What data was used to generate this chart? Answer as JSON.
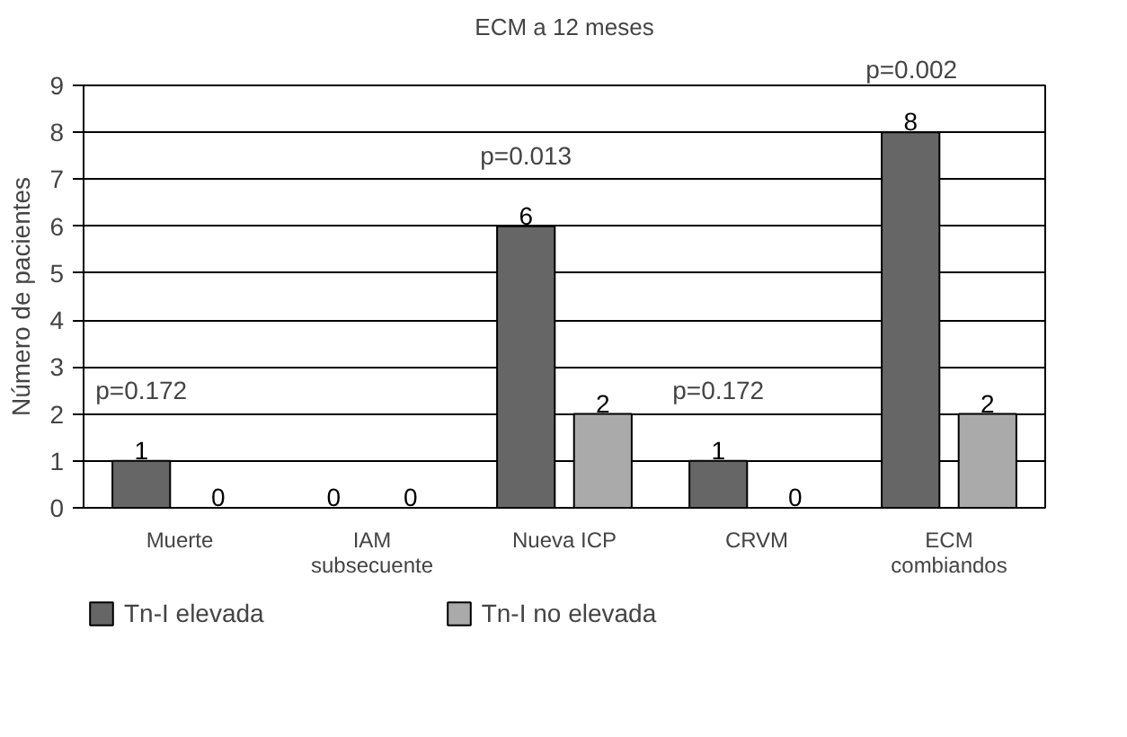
{
  "chart_data": {
    "type": "bar",
    "title": "ECM a 12 meses",
    "ylabel": "Número de pacientes",
    "categories": [
      "Muerte",
      "IAM\nsubsecuente",
      "Nueva ICP",
      "CRVM",
      "ECM\ncombiandos"
    ],
    "series": [
      {
        "name": "Tn-I elevada",
        "color": "#666666",
        "values": [
          1,
          0,
          6,
          1,
          8
        ]
      },
      {
        "name": "Tn-I no elevada",
        "color": "#aaaaaa",
        "values": [
          0,
          0,
          2,
          0,
          2
        ]
      }
    ],
    "ylim": [
      0,
      9
    ],
    "yticks": [
      0,
      1,
      2,
      3,
      4,
      5,
      6,
      7,
      8,
      9
    ],
    "grid": "y",
    "legend": "bottom",
    "data_labels": true,
    "annotations": [
      "p=0.172",
      "p=0.013",
      "p=0.172",
      "p=0.002"
    ]
  }
}
